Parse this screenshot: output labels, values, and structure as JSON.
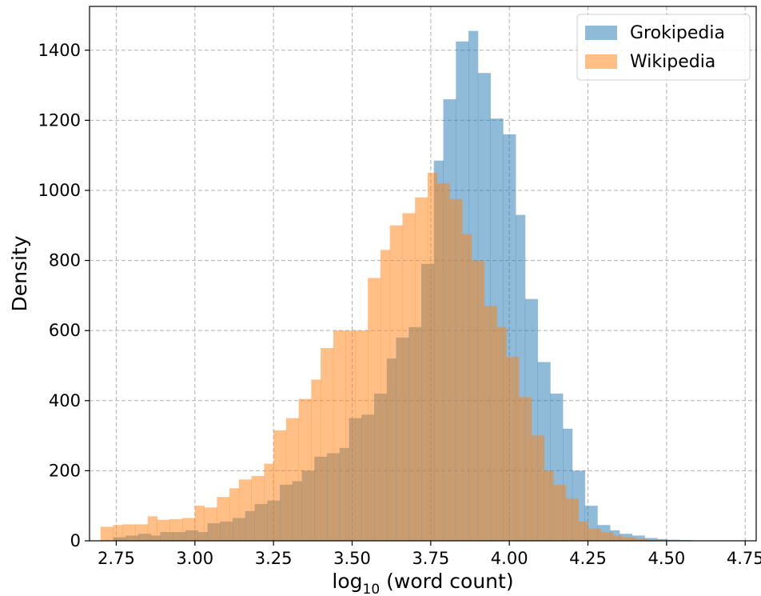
{
  "chart_data": {
    "type": "histogram",
    "xlabel": "log10 (word count)",
    "ylabel": "Density",
    "xlim": [
      2.665,
      4.785
    ],
    "ylim": [
      0,
      1525
    ],
    "xticks": [
      2.75,
      3.0,
      3.25,
      3.5,
      3.75,
      4.0,
      4.25,
      4.5,
      4.75
    ],
    "xtick_labels": [
      "2.75",
      "3.00",
      "3.25",
      "3.50",
      "3.75",
      "4.00",
      "4.25",
      "4.50",
      "4.75"
    ],
    "yticks": [
      0,
      200,
      400,
      600,
      800,
      1000,
      1200,
      1400
    ],
    "ytick_labels": [
      "0",
      "200",
      "400",
      "600",
      "800",
      "1000",
      "1200",
      "1400"
    ],
    "grid": true,
    "legend_position": "top-right",
    "colors": {
      "Grokipedia": "#1f77b4",
      "Wikipedia": "#ff7f0e"
    },
    "bar_alpha": 0.5,
    "series": [
      {
        "name": "Grokipedia",
        "bins": [
          [
            2.74,
            2.78,
            10
          ],
          [
            2.78,
            2.82,
            15
          ],
          [
            2.82,
            2.86,
            20
          ],
          [
            2.86,
            2.89,
            15
          ],
          [
            2.89,
            2.93,
            25
          ],
          [
            2.93,
            2.97,
            25
          ],
          [
            2.97,
            3.01,
            30
          ],
          [
            3.01,
            3.04,
            25
          ],
          [
            3.04,
            3.08,
            50
          ],
          [
            3.08,
            3.12,
            55
          ],
          [
            3.12,
            3.16,
            65
          ],
          [
            3.16,
            3.19,
            85
          ],
          [
            3.19,
            3.23,
            105
          ],
          [
            3.23,
            3.27,
            115
          ],
          [
            3.27,
            3.31,
            160
          ],
          [
            3.31,
            3.34,
            170
          ],
          [
            3.34,
            3.38,
            200
          ],
          [
            3.38,
            3.42,
            240
          ],
          [
            3.42,
            3.46,
            250
          ],
          [
            3.46,
            3.49,
            265
          ],
          [
            3.49,
            3.53,
            350
          ],
          [
            3.53,
            3.57,
            360
          ],
          [
            3.57,
            3.61,
            420
          ],
          [
            3.61,
            3.64,
            520
          ],
          [
            3.64,
            3.68,
            580
          ],
          [
            3.68,
            3.72,
            610
          ],
          [
            3.72,
            3.76,
            790
          ],
          [
            3.76,
            3.79,
            1085
          ],
          [
            3.79,
            3.83,
            1260
          ],
          [
            3.83,
            3.87,
            1425
          ],
          [
            3.87,
            3.9,
            1455
          ],
          [
            3.9,
            3.94,
            1335
          ],
          [
            3.94,
            3.98,
            1205
          ],
          [
            3.98,
            4.02,
            1160
          ],
          [
            4.02,
            4.05,
            930
          ],
          [
            4.05,
            4.09,
            690
          ],
          [
            4.09,
            4.13,
            510
          ],
          [
            4.13,
            4.17,
            420
          ],
          [
            4.17,
            4.2,
            320
          ],
          [
            4.2,
            4.24,
            200
          ],
          [
            4.24,
            4.28,
            100
          ],
          [
            4.28,
            4.32,
            45
          ],
          [
            4.32,
            4.35,
            30
          ],
          [
            4.35,
            4.39,
            20
          ],
          [
            4.39,
            4.43,
            15
          ],
          [
            4.43,
            4.47,
            8
          ],
          [
            4.47,
            4.5,
            5
          ],
          [
            4.5,
            4.54,
            3
          ],
          [
            4.54,
            4.58,
            2
          ]
        ]
      },
      {
        "name": "Wikipedia",
        "bins": [
          [
            2.7,
            2.74,
            40
          ],
          [
            2.74,
            2.77,
            45
          ],
          [
            2.77,
            2.81,
            47
          ],
          [
            2.81,
            2.85,
            47
          ],
          [
            2.85,
            2.88,
            70
          ],
          [
            2.88,
            2.92,
            60
          ],
          [
            2.92,
            2.96,
            62
          ],
          [
            2.96,
            3.0,
            65
          ],
          [
            3.0,
            3.03,
            100
          ],
          [
            3.03,
            3.07,
            95
          ],
          [
            3.07,
            3.11,
            125
          ],
          [
            3.11,
            3.14,
            150
          ],
          [
            3.14,
            3.18,
            175
          ],
          [
            3.18,
            3.22,
            185
          ],
          [
            3.22,
            3.25,
            220
          ],
          [
            3.25,
            3.29,
            315
          ],
          [
            3.29,
            3.33,
            350
          ],
          [
            3.33,
            3.37,
            405
          ],
          [
            3.37,
            3.4,
            460
          ],
          [
            3.4,
            3.44,
            550
          ],
          [
            3.44,
            3.48,
            600
          ],
          [
            3.48,
            3.51,
            600
          ],
          [
            3.51,
            3.55,
            600
          ],
          [
            3.55,
            3.59,
            750
          ],
          [
            3.59,
            3.62,
            830
          ],
          [
            3.62,
            3.66,
            900
          ],
          [
            3.66,
            3.7,
            935
          ],
          [
            3.7,
            3.74,
            980
          ],
          [
            3.74,
            3.77,
            1050
          ],
          [
            3.77,
            3.81,
            1020
          ],
          [
            3.81,
            3.85,
            975
          ],
          [
            3.85,
            3.88,
            875
          ],
          [
            3.88,
            3.92,
            800
          ],
          [
            3.92,
            3.96,
            670
          ],
          [
            3.96,
            3.99,
            610
          ],
          [
            3.99,
            4.03,
            525
          ],
          [
            4.03,
            4.07,
            410
          ],
          [
            4.07,
            4.11,
            300
          ],
          [
            4.11,
            4.14,
            200
          ],
          [
            4.14,
            4.18,
            160
          ],
          [
            4.18,
            4.22,
            120
          ],
          [
            4.22,
            4.25,
            55
          ],
          [
            4.25,
            4.29,
            35
          ],
          [
            4.29,
            4.33,
            25
          ],
          [
            4.33,
            4.36,
            15
          ],
          [
            4.36,
            4.4,
            10
          ],
          [
            4.4,
            4.44,
            6
          ],
          [
            4.44,
            4.48,
            3
          ],
          [
            4.48,
            4.51,
            2
          ]
        ]
      }
    ]
  }
}
